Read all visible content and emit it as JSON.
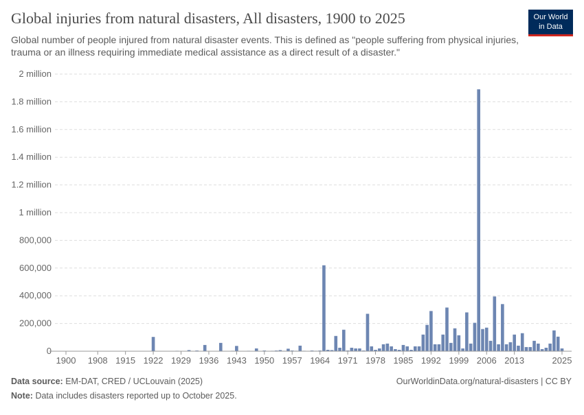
{
  "chart_data": {
    "type": "bar",
    "title": "Global injuries from natural disasters, All disasters, 1900 to 2025",
    "subtitle": "Global number of people injured from natural disaster events. This is defined as \"people suffering from physical injuries, trauma or an illness requiring immediate medical assistance as a direct result of a disaster.\"",
    "logo": [
      "Our World",
      "in Data"
    ],
    "source_label": "Data source:",
    "source": "EM-DAT, CRED / UCLouvain (2025)",
    "url": "OurWorldinData.org/natural-disasters | CC BY",
    "note_label": "Note:",
    "note": "Data includes disasters reported up to October 2025.",
    "color": "#6d86b2",
    "grid": true,
    "x": [
      1900,
      1901,
      1902,
      1903,
      1904,
      1905,
      1906,
      1907,
      1908,
      1909,
      1910,
      1911,
      1912,
      1913,
      1914,
      1915,
      1916,
      1917,
      1918,
      1919,
      1920,
      1921,
      1922,
      1923,
      1924,
      1925,
      1926,
      1927,
      1928,
      1929,
      1930,
      1931,
      1932,
      1933,
      1934,
      1935,
      1936,
      1937,
      1938,
      1939,
      1940,
      1941,
      1942,
      1943,
      1944,
      1945,
      1946,
      1947,
      1948,
      1949,
      1950,
      1951,
      1952,
      1953,
      1954,
      1955,
      1956,
      1957,
      1958,
      1959,
      1960,
      1961,
      1962,
      1963,
      1964,
      1965,
      1966,
      1967,
      1968,
      1969,
      1970,
      1971,
      1972,
      1973,
      1974,
      1975,
      1976,
      1977,
      1978,
      1979,
      1980,
      1981,
      1982,
      1983,
      1984,
      1985,
      1986,
      1987,
      1988,
      1989,
      1990,
      1991,
      1992,
      1993,
      1994,
      1995,
      1996,
      1997,
      1998,
      1999,
      2000,
      2001,
      2002,
      2003,
      2004,
      2005,
      2006,
      2007,
      2008,
      2009,
      2010,
      2011,
      2012,
      2013,
      2014,
      2015,
      2016,
      2017,
      2018,
      2019,
      2020,
      2021,
      2022,
      2023,
      2024,
      2025
    ],
    "values": [
      0,
      0,
      0,
      0,
      0,
      0,
      0,
      0,
      0,
      0,
      0,
      0,
      0,
      0,
      0,
      0,
      0,
      0,
      0,
      0,
      0,
      0,
      103000,
      2000,
      0,
      0,
      0,
      0,
      3000,
      2000,
      0,
      8000,
      0,
      5000,
      0,
      45000,
      0,
      0,
      2000,
      60000,
      0,
      0,
      3000,
      38000,
      0,
      0,
      3000,
      0,
      20000,
      0,
      5000,
      0,
      3000,
      5000,
      8000,
      3000,
      18000,
      5000,
      3000,
      40000,
      3000,
      0,
      5000,
      3000,
      5000,
      620000,
      10000,
      8000,
      110000,
      25000,
      155000,
      5000,
      25000,
      20000,
      20000,
      5000,
      270000,
      35000,
      10000,
      20000,
      50000,
      55000,
      35000,
      15000,
      10000,
      45000,
      35000,
      10000,
      35000,
      35000,
      120000,
      190000,
      290000,
      50000,
      50000,
      120000,
      315000,
      60000,
      165000,
      115000,
      20000,
      280000,
      55000,
      205000,
      1890000,
      160000,
      170000,
      75000,
      395000,
      50000,
      340000,
      50000,
      65000,
      120000,
      40000,
      130000,
      30000,
      30000,
      75000,
      55000,
      15000,
      25000,
      55000,
      150000,
      105000,
      20000
    ],
    "xlim": [
      1900,
      2025
    ],
    "xticks": [
      1900,
      1908,
      1915,
      1922,
      1929,
      1936,
      1943,
      1950,
      1957,
      1964,
      1971,
      1978,
      1985,
      1992,
      1999,
      2006,
      2013,
      2025
    ],
    "ylim": [
      0,
      2000000
    ],
    "yticks": [
      0,
      {
        "value": 200000,
        "label": "200,000"
      },
      {
        "value": 400000,
        "label": "400,000"
      },
      {
        "value": 600000,
        "label": "600,000"
      },
      {
        "value": 800000,
        "label": "800,000"
      },
      {
        "value": 1000000,
        "label": "1 million"
      },
      {
        "value": 1200000,
        "label": "1.2 million"
      },
      {
        "value": 1400000,
        "label": "1.4 million"
      },
      {
        "value": 1600000,
        "label": "1.6 million"
      },
      {
        "value": 1800000,
        "label": "1.8 million"
      },
      {
        "value": 2000000,
        "label": "2 million"
      }
    ]
  }
}
